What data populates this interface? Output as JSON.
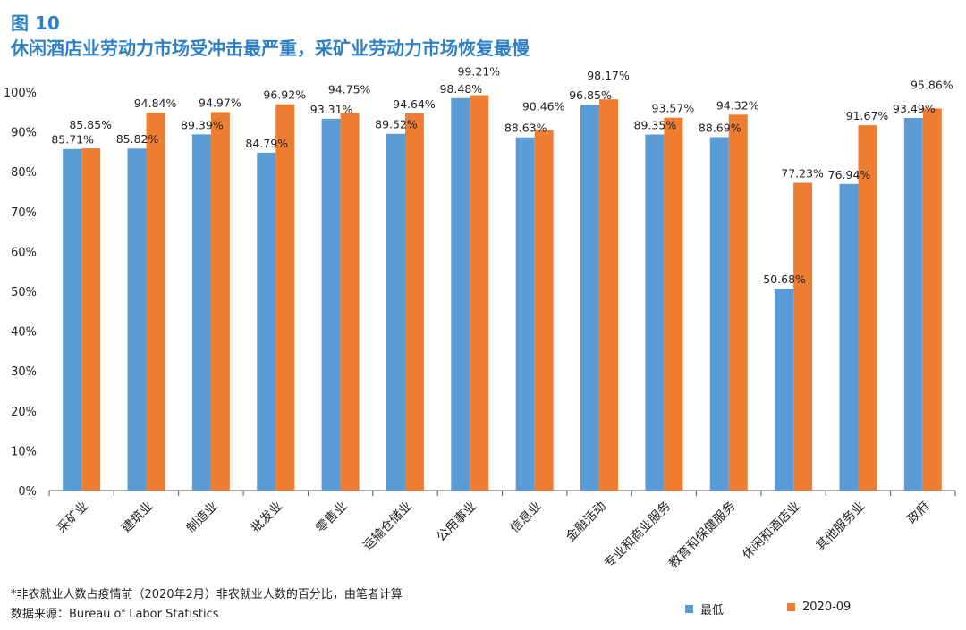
{
  "figure": {
    "number": "图 10",
    "title": "休闲酒店业劳动力市场受冲击最严重，采矿业劳动力市场恢复最慢"
  },
  "notes": {
    "footnote": "*非农就业人数占疫情前（2020年2月）非农就业人数的百分比，由笔者计算",
    "source": "数据来源：Bureau of Labor Statistics"
  },
  "colors": {
    "series1": "#5b9bd5",
    "series2": "#ed7d31"
  },
  "chart_data": {
    "type": "bar",
    "categories": [
      "采矿业",
      "建筑业",
      "制造业",
      "批发业",
      "零售业",
      "运输仓储业",
      "公用事业",
      "信息业",
      "金融活动",
      "专业和商业服务",
      "教育和保健服务",
      "休闲和酒店业",
      "其他服务业",
      "政府"
    ],
    "series": [
      {
        "name": "最低",
        "values": [
          85.71,
          85.82,
          89.39,
          84.79,
          93.31,
          89.52,
          98.48,
          88.63,
          96.85,
          89.35,
          88.69,
          50.68,
          76.94,
          93.49
        ],
        "labels": [
          "85.71%",
          "85.82%",
          "89.39%",
          "84.79%",
          "93.31%",
          "89.52%",
          "98.48%",
          "88.63%",
          "96.85%",
          "89.35%",
          "88.69%",
          "50.68%",
          "76.94%",
          "93.49%"
        ]
      },
      {
        "name": "2020-09",
        "values": [
          85.85,
          94.84,
          94.97,
          96.92,
          94.75,
          94.64,
          99.21,
          90.46,
          98.17,
          93.57,
          94.32,
          77.23,
          91.67,
          95.86
        ],
        "labels": [
          "85.85%",
          "94.84%",
          "94.97%",
          "96.92%",
          "94.75%",
          "94.64%",
          "99.21%",
          "90.46%",
          "98.17%",
          "93.57%",
          "94.32%",
          "77.23%",
          "91.67%",
          "95.86%"
        ]
      }
    ],
    "ylim": [
      0,
      100
    ],
    "yticks": [
      "0%",
      "10%",
      "20%",
      "30%",
      "40%",
      "50%",
      "60%",
      "70%",
      "80%",
      "90%",
      "100%"
    ],
    "grid": false,
    "legend_position": "bottom-right"
  }
}
